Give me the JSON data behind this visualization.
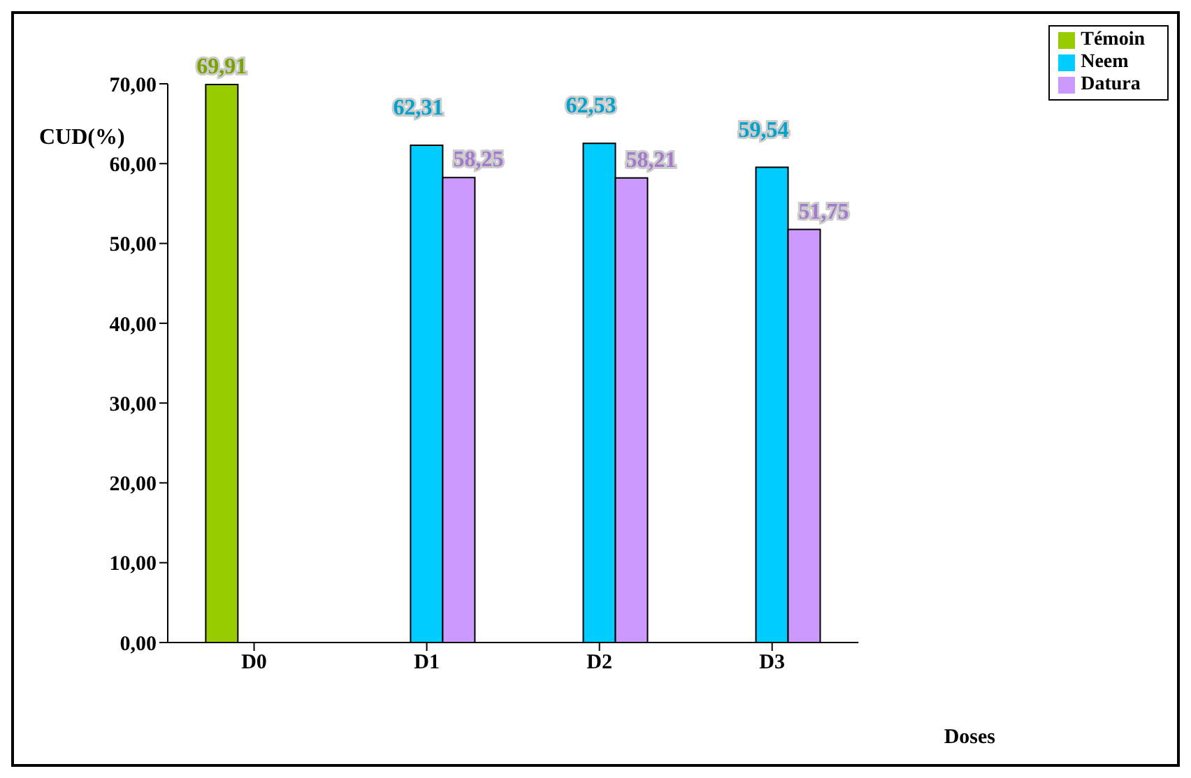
{
  "chart_data": {
    "type": "bar",
    "categories": [
      "D0",
      "D1",
      "D2",
      "D3"
    ],
    "ylabel": "CUD(%)",
    "xlabel": "Doses",
    "series": [
      {
        "name": "Témoin",
        "color": "#99cc00",
        "values": [
          69.91,
          null,
          null,
          null
        ],
        "value_labels": [
          "69,91",
          null,
          null,
          null
        ]
      },
      {
        "name": "Neem",
        "color": "#00ccff",
        "values": [
          null,
          62.31,
          62.53,
          59.54
        ],
        "value_labels": [
          null,
          "62,31",
          "62,53",
          "59,54"
        ]
      },
      {
        "name": "Datura",
        "color": "#cc99ff",
        "values": [
          null,
          58.25,
          58.21,
          51.75
        ],
        "value_labels": [
          null,
          "58,25",
          "58,21",
          "51,75"
        ]
      }
    ],
    "ylim": [
      0,
      70
    ],
    "yticks": [
      {
        "value": 0,
        "label": "0,00"
      },
      {
        "value": 10,
        "label": "10,00"
      },
      {
        "value": 20,
        "label": "20,00"
      },
      {
        "value": 30,
        "label": "30,00"
      },
      {
        "value": 40,
        "label": "40,00"
      },
      {
        "value": 50,
        "label": "50,00"
      },
      {
        "value": 60,
        "label": "60,00"
      },
      {
        "value": 70,
        "label": "70,00"
      }
    ],
    "grid": false,
    "legend": "top right"
  }
}
